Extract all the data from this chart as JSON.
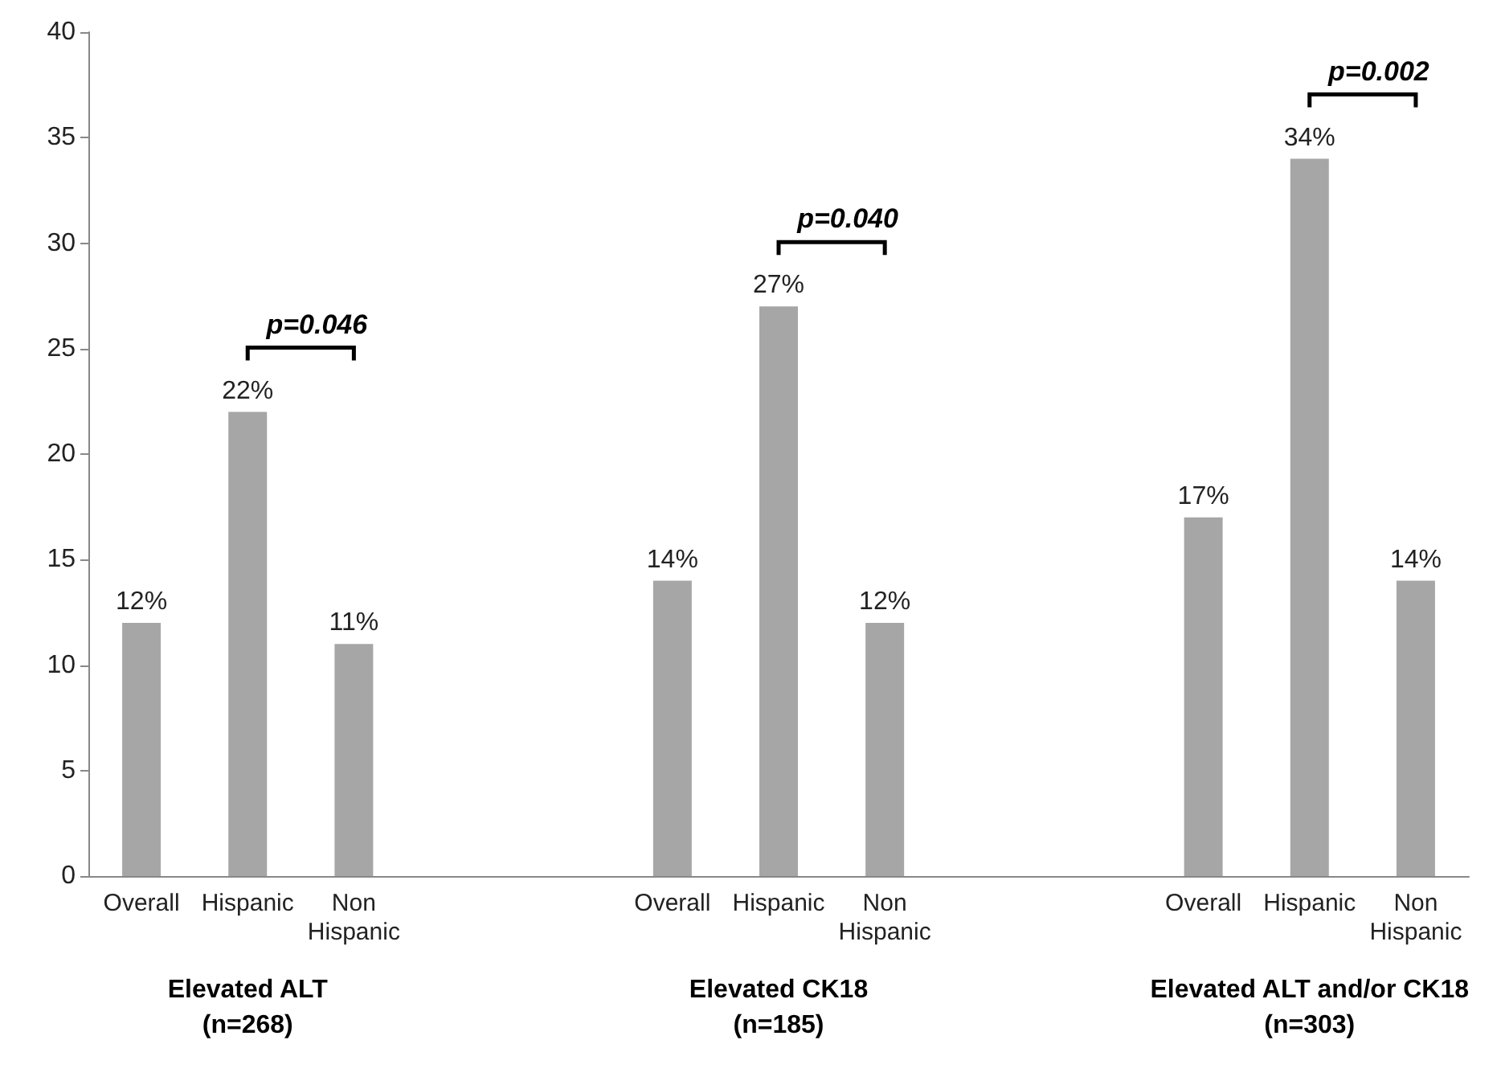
{
  "chart_data": {
    "type": "bar",
    "categories": [
      "Overall",
      "Hispanic",
      "Non\nHispanic",
      null,
      null,
      "Overall",
      "Hispanic",
      "Non\nHispanic",
      null,
      null,
      "Overall",
      "Hispanic",
      "Non\nHispanic"
    ],
    "values": [
      12,
      22,
      11,
      null,
      null,
      14,
      27,
      12,
      null,
      null,
      17,
      34,
      14
    ],
    "value_labels": [
      "12%",
      "22%",
      "11%",
      null,
      null,
      "14%",
      "27%",
      "12%",
      null,
      null,
      "17%",
      "34%",
      "14%"
    ],
    "color": "#a6a6a6",
    "ylim": [
      0,
      40
    ],
    "yticks": [
      0,
      5,
      10,
      15,
      20,
      25,
      30,
      35,
      40
    ],
    "grid": false,
    "annotations": [
      "Elevated ALT\n(n=268)",
      "Elevated CK18\n(n=185)",
      "Elevated ALT and/or CK18\n(n=303)",
      "p=0.046",
      "p=0.040",
      "p=0.002"
    ]
  }
}
